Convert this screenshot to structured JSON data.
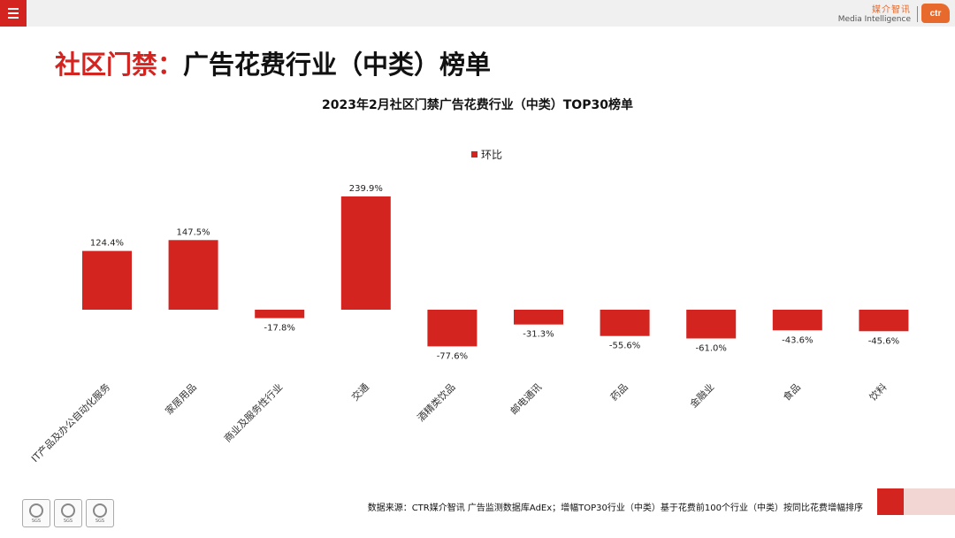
{
  "header": {
    "brand_cn": "媒介智讯",
    "brand_en": "Media Intelligence",
    "logo_text": "ctr"
  },
  "page_title": {
    "accent": "社区门禁：",
    "main": "广告花费行业（中类）榜单"
  },
  "chart_data": {
    "type": "bar",
    "title": "2023年2月社区门禁广告花费行业（中类）TOP30榜单",
    "legend": [
      "环比"
    ],
    "legend_position": "top-center",
    "categories": [
      "IT产品及办公自动化服务",
      "家居用品",
      "商业及服务性行业",
      "交通",
      "酒精类饮品",
      "邮电通讯",
      "药品",
      "金融业",
      "食品",
      "饮料"
    ],
    "values": [
      124.4,
      147.5,
      -17.8,
      239.9,
      -77.6,
      -31.3,
      -55.6,
      -61.0,
      -43.6,
      -45.6
    ],
    "data_labels": [
      "124.4%",
      "147.5%",
      "-17.8%",
      "239.9%",
      "-77.6%",
      "-31.3%",
      "-55.6%",
      "-61.0%",
      "-43.6%",
      "-45.6%"
    ],
    "xlabel": "",
    "ylabel": "",
    "ylim": [
      -100,
      250
    ],
    "grid": false,
    "bar_color": "#d42420"
  },
  "source_text": "数据来源：CTR媒介智讯 广告监测数据库AdEx；增幅TOP30行业（中类）基于花费前100个行业（中类）按同比花费增幅排序",
  "certifications": [
    "SGS",
    "SGS",
    "SGS"
  ],
  "colors": {
    "accent": "#d42420",
    "brand_orange": "#e8692c"
  }
}
